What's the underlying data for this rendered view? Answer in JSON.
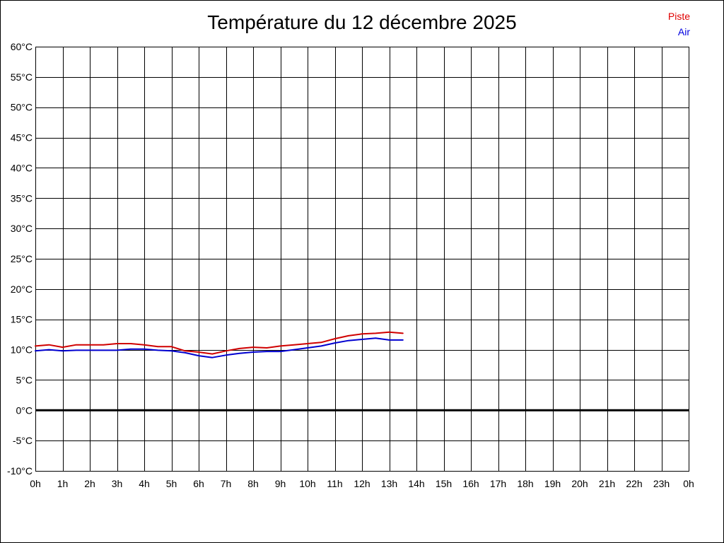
{
  "chart_data": {
    "type": "line",
    "title": "Température du 12 décembre 2025",
    "xlabel": "",
    "ylabel": "",
    "xlim": [
      0,
      24
    ],
    "ylim": [
      -10,
      60
    ],
    "grid": true,
    "legend_position": "top-right",
    "x_tick_labels": [
      "0h",
      "1h",
      "2h",
      "3h",
      "4h",
      "5h",
      "6h",
      "7h",
      "8h",
      "9h",
      "10h",
      "11h",
      "12h",
      "13h",
      "14h",
      "15h",
      "16h",
      "17h",
      "18h",
      "19h",
      "20h",
      "21h",
      "22h",
      "23h",
      "0h"
    ],
    "y_tick_labels": [
      "60°C",
      "55°C",
      "50°C",
      "45°C",
      "40°C",
      "35°C",
      "30°C",
      "25°C",
      "20°C",
      "15°C",
      "10°C",
      "5°C",
      "0°C",
      "-5°C",
      "-10°C"
    ],
    "y_tick_values": [
      60,
      55,
      50,
      45,
      40,
      35,
      30,
      25,
      20,
      15,
      10,
      5,
      0,
      -5,
      -10
    ],
    "x": [
      0,
      0.5,
      1,
      1.5,
      2,
      2.5,
      3,
      3.5,
      4,
      4.5,
      5,
      5.5,
      6,
      6.5,
      7,
      7.5,
      8,
      8.5,
      9,
      9.5,
      10,
      10.5,
      11,
      11.5,
      12,
      12.5,
      13,
      13.5
    ],
    "series": [
      {
        "name": "Piste",
        "color": "#d00000",
        "values": [
          10.6,
          10.8,
          10.4,
          10.8,
          10.8,
          10.8,
          11.0,
          11.0,
          10.8,
          10.5,
          10.5,
          9.8,
          9.6,
          9.3,
          9.8,
          10.2,
          10.4,
          10.3,
          10.6,
          10.8,
          11.0,
          11.2,
          11.8,
          12.3,
          12.6,
          12.7,
          12.9,
          12.7
        ]
      },
      {
        "name": "Air",
        "color": "#0000d0",
        "values": [
          9.8,
          10.0,
          9.8,
          9.9,
          9.9,
          9.9,
          9.9,
          10.1,
          10.1,
          9.9,
          9.8,
          9.5,
          9.0,
          8.7,
          9.1,
          9.4,
          9.6,
          9.7,
          9.7,
          10.0,
          10.3,
          10.6,
          11.1,
          11.5,
          11.7,
          11.9,
          11.6,
          11.6
        ]
      }
    ],
    "reference_line": {
      "y": 0,
      "color": "#000000"
    }
  }
}
